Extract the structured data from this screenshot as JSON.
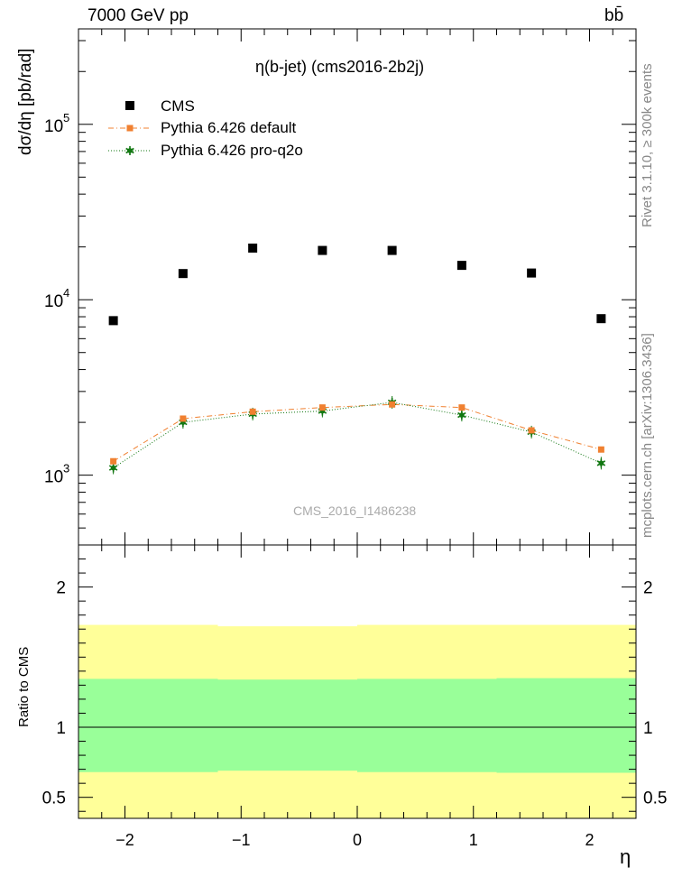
{
  "header": {
    "energy_label": "7000 GeV pp",
    "process_label": "bb̄"
  },
  "side_labels": {
    "rivet": "Rivet 3.1.10, ≥ 300k events",
    "mcplots": "mcplots.cern.ch [arXiv:1306.3436]"
  },
  "watermark": "CMS_2016_I1486238",
  "chart_data": [
    {
      "type": "scatter",
      "title": "η(b-jet) (cms2016-2b2j)",
      "xlabel": "η",
      "ylabel": "dσ/dη [pb/rad]",
      "yscale": "log",
      "xlim": [
        -2.4,
        2.4
      ],
      "ylim": [
        400,
        350000
      ],
      "x_ticks": [
        "−2",
        "−1",
        "0",
        "1",
        "2"
      ],
      "y_ticks": [
        "10^3",
        "10^4",
        "10^5"
      ],
      "x": [
        -2.1,
        -1.5,
        -0.9,
        -0.3,
        0.3,
        0.9,
        1.5,
        2.1
      ],
      "legend_position": "top-left",
      "series": [
        {
          "name": "CMS",
          "color": "#000000",
          "marker": "square",
          "values": [
            7600,
            14100,
            19700,
            19100,
            19100,
            15700,
            14200,
            7800
          ]
        },
        {
          "name": "Pythia 6.426 default",
          "color": "#f08030",
          "marker": "small-square",
          "line": "dashdot",
          "values": [
            1200,
            2100,
            2300,
            2430,
            2530,
            2430,
            1800,
            1400
          ]
        },
        {
          "name": "Pythia 6.426 pro-q2o",
          "color": "#117711",
          "marker": "star",
          "line": "dotted",
          "values": [
            1100,
            2000,
            2230,
            2320,
            2600,
            2200,
            1760,
            1170
          ]
        }
      ]
    },
    {
      "type": "area",
      "title": "",
      "xlabel": "η",
      "ylabel": "Ratio to CMS",
      "xlim": [
        -2.4,
        2.4
      ],
      "ylim": [
        0.35,
        2.3
      ],
      "x_ticks": [
        "−2",
        "−1",
        "0",
        "1",
        "2"
      ],
      "y_ticks": [
        "0.5",
        "1",
        "2"
      ],
      "reference_line": 1,
      "bins": [
        {
          "x_low": -2.4,
          "x_high": -1.2,
          "band_green": [
            0.68,
            1.345
          ],
          "band_yellow": [
            0.35,
            1.73
          ]
        },
        {
          "x_low": -1.2,
          "x_high": 0.0,
          "band_green": [
            0.69,
            1.34
          ],
          "band_yellow": [
            0.35,
            1.72
          ]
        },
        {
          "x_low": 0.0,
          "x_high": 1.2,
          "band_green": [
            0.68,
            1.345
          ],
          "band_yellow": [
            0.35,
            1.73
          ]
        },
        {
          "x_low": 1.2,
          "x_high": 2.4,
          "band_green": [
            0.675,
            1.35
          ],
          "band_yellow": [
            0.35,
            1.73
          ]
        }
      ],
      "colors": {
        "band_green": "#99ff99",
        "band_yellow": "#ffff99"
      }
    }
  ]
}
